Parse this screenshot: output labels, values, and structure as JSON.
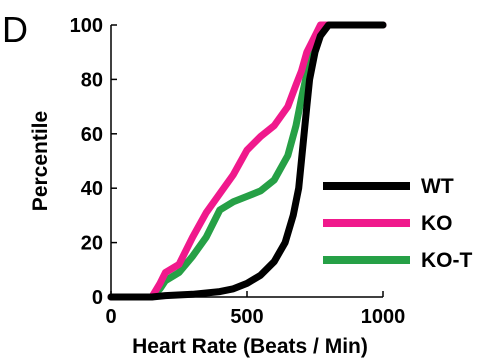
{
  "panel_label": "D",
  "colors": {
    "WT": "#000000",
    "KO": "#f0198c",
    "KO-T": "#26a046",
    "axis": "#000000"
  },
  "chart_data": {
    "type": "line",
    "title": "",
    "xlabel": "Heart Rate (Beats / Min)",
    "ylabel": "Percentile",
    "xlim": [
      0,
      1000
    ],
    "ylim": [
      0,
      100
    ],
    "xticks": [
      0,
      500,
      1000
    ],
    "yticks": [
      0,
      20,
      40,
      60,
      80,
      100
    ],
    "grid": false,
    "legend_position": "lower-right",
    "series": [
      {
        "name": "WT",
        "x": [
          0,
          150,
          200,
          300,
          400,
          450,
          500,
          550,
          600,
          640,
          670,
          690,
          700,
          710,
          720,
          730,
          750,
          770,
          800,
          830,
          1000
        ],
        "y": [
          0,
          0,
          0.5,
          1,
          2,
          3,
          5,
          8,
          13,
          20,
          30,
          40,
          50,
          60,
          70,
          80,
          90,
          96,
          100,
          100,
          100
        ]
      },
      {
        "name": "KO",
        "x": [
          0,
          150,
          180,
          200,
          250,
          300,
          350,
          400,
          450,
          500,
          550,
          600,
          650,
          680,
          700,
          720,
          750,
          770,
          800,
          1000
        ],
        "y": [
          0,
          0,
          5,
          9,
          12,
          22,
          31,
          38,
          45,
          54,
          59,
          63,
          70,
          78,
          83,
          90,
          96,
          100,
          100,
          100
        ]
      },
      {
        "name": "KO-T",
        "x": [
          0,
          150,
          180,
          200,
          250,
          300,
          350,
          400,
          450,
          500,
          550,
          600,
          650,
          680,
          700,
          720,
          750,
          780,
          800,
          1000
        ],
        "y": [
          0,
          0,
          3,
          6,
          9,
          15,
          22,
          32,
          35,
          37,
          39,
          43,
          52,
          63,
          73,
          82,
          92,
          100,
          100,
          100
        ]
      }
    ]
  }
}
